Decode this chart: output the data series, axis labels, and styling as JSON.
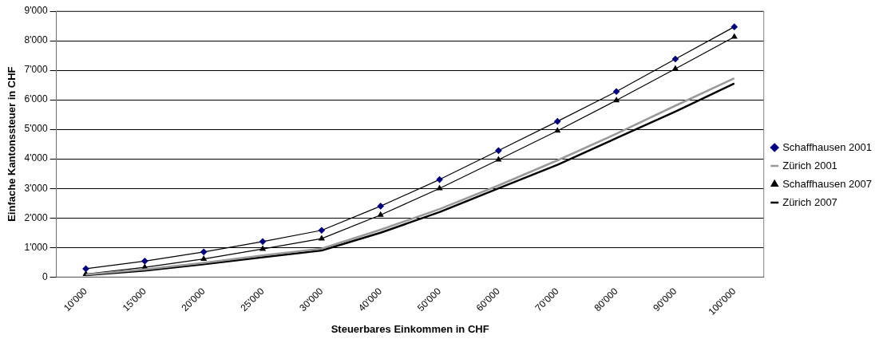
{
  "chart_data": {
    "type": "line",
    "xlabel": "Steuerbares Einkommen in CHF",
    "ylabel": "Einfache Kantonssteuer in CHF",
    "categories": [
      "10'000",
      "15'000",
      "20'000",
      "25'000",
      "30'000",
      "40'000",
      "50'000",
      "60'000",
      "70'000",
      "80'000",
      "90'000",
      "100'000"
    ],
    "series": [
      {
        "name": "Schaffhausen 2001",
        "color": "#000080",
        "marker": "diamond",
        "values": [
          280,
          540,
          850,
          1200,
          1580,
          2400,
          3300,
          4280,
          5270,
          6280,
          7380,
          8470
        ]
      },
      {
        "name": "Zürich 2001",
        "color": "#999999",
        "marker": "none",
        "values": [
          80,
          260,
          480,
          730,
          960,
          1600,
          2300,
          3100,
          3950,
          4850,
          5800,
          6730
        ]
      },
      {
        "name": "Schaffhausen 2007",
        "color": "#000000",
        "marker": "triangle",
        "values": [
          100,
          330,
          610,
          950,
          1300,
          2100,
          3000,
          3970,
          4950,
          5980,
          7050,
          8130
        ]
      },
      {
        "name": "Zürich 2007",
        "color": "#000000",
        "marker": "none",
        "values": [
          60,
          220,
          430,
          670,
          900,
          1500,
          2200,
          3000,
          3800,
          4700,
          5600,
          6550
        ]
      }
    ],
    "ylim": [
      0,
      9000
    ],
    "yticks": [
      {
        "value": 0,
        "label": "0"
      },
      {
        "value": 1000,
        "label": "1'000"
      },
      {
        "value": 2000,
        "label": "2'000"
      },
      {
        "value": 3000,
        "label": "3'000"
      },
      {
        "value": 4000,
        "label": "4'000"
      },
      {
        "value": 5000,
        "label": "5'000"
      },
      {
        "value": 6000,
        "label": "6'000"
      },
      {
        "value": 7000,
        "label": "7'000"
      },
      {
        "value": 8000,
        "label": "8'000"
      },
      {
        "value": 9000,
        "label": "9'000"
      }
    ],
    "grid": "y",
    "legend": "right"
  }
}
